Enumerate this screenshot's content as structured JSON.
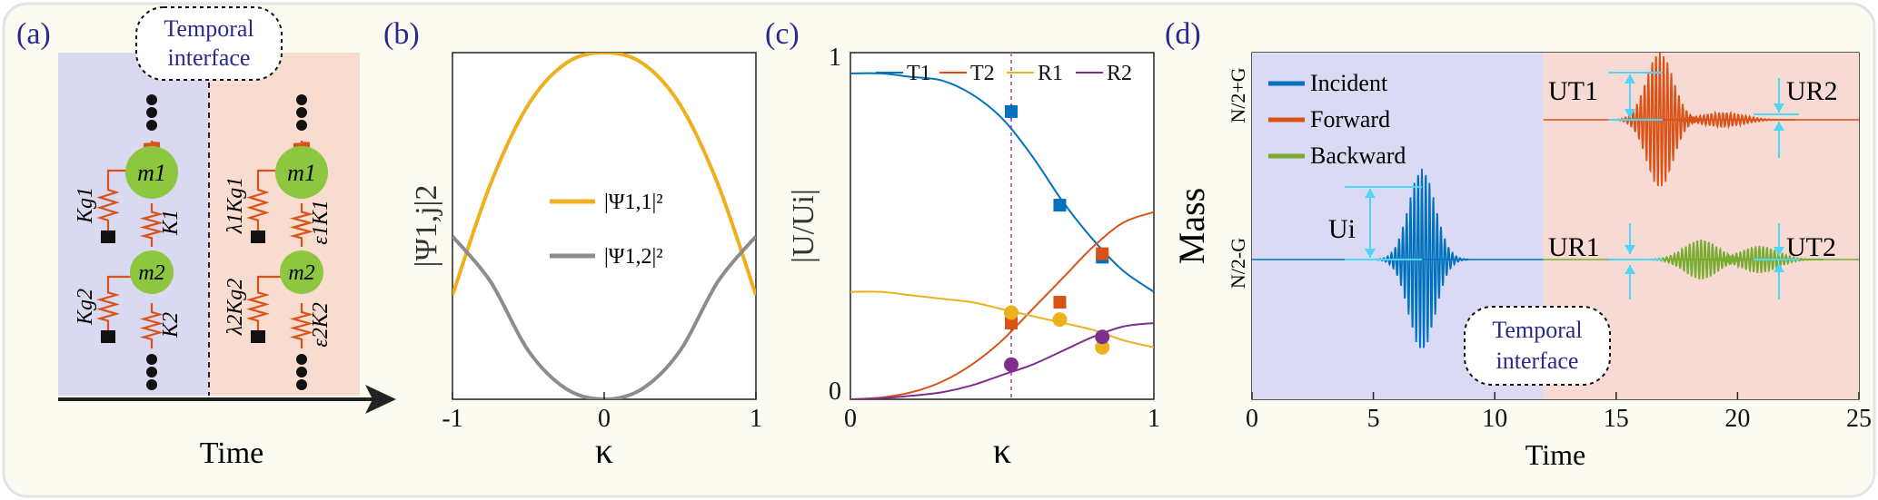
{
  "panels": {
    "a": {
      "label": "(a)",
      "callout": [
        "Temporal",
        "interface"
      ],
      "masses": [
        "m1",
        "m2"
      ],
      "left_springs": [
        "Kg1",
        "K1",
        "Kg2",
        "K2"
      ],
      "right_springs": [
        "λ1Kg1",
        "ε1K1",
        "λ2Kg2",
        "ε2K2"
      ],
      "xlabel": "Time"
    },
    "b": {
      "label": "(b)",
      "xlabel": "κ",
      "ylabel": "|Ψ1,j|2",
      "xticks": [
        "-1",
        "0",
        "1"
      ],
      "legend": [
        "|Ψ1,1|²",
        "|Ψ1,2|²"
      ]
    },
    "c": {
      "label": "(c)",
      "xlabel": "κ",
      "ylabel": "|U/Ui|",
      "xticks": [
        "0",
        "1"
      ],
      "yticks": [
        "0",
        "1"
      ],
      "legend": [
        "T1",
        "T2",
        "R1",
        "R2"
      ]
    },
    "d": {
      "label": "(d)",
      "xlabel": "Time",
      "ylabel": "Mass",
      "xticks": [
        "0",
        "5",
        "10",
        "15",
        "20",
        "25"
      ],
      "ytick_labels": [
        "N/2+G",
        "N/2-G"
      ],
      "legend": [
        "Incident",
        "Forward",
        "Backward"
      ],
      "annotations": [
        "Ui",
        "UT1",
        "UR2",
        "UR1",
        "UT2"
      ],
      "callout": [
        "Temporal",
        "interface"
      ]
    }
  },
  "colors": {
    "blue": "#0072bd",
    "orange": "#d95319",
    "yellow": "#edb120",
    "purple": "#7e2f8e",
    "gray": "#8c8c8c",
    "green": "#77ac30",
    "cyan": "#4dd6f5",
    "label_blue": "#2a2a8c"
  },
  "chart_data": [
    {
      "id": "b",
      "type": "line",
      "xlabel": "κ",
      "ylabel": "|Ψ1,j|2",
      "xlim": [
        -1,
        1
      ],
      "ylim": [
        0,
        1
      ],
      "series": [
        {
          "name": "|Ψ1,1|²",
          "color": "#edb120",
          "x": [
            -1,
            -0.75,
            -0.5,
            -0.25,
            0,
            0.25,
            0.5,
            0.75,
            1
          ],
          "y": [
            0.3,
            0.62,
            0.85,
            0.97,
            1.0,
            0.97,
            0.85,
            0.62,
            0.3
          ]
        },
        {
          "name": "|Ψ1,2|²",
          "color": "#8c8c8c",
          "x": [
            -1,
            -0.75,
            -0.5,
            -0.25,
            0,
            0.25,
            0.5,
            0.75,
            1
          ],
          "y": [
            0.47,
            0.34,
            0.14,
            0.03,
            0.0,
            0.03,
            0.14,
            0.34,
            0.47
          ]
        }
      ]
    },
    {
      "id": "c",
      "type": "line",
      "xlabel": "κ",
      "ylabel": "|U/Ui|",
      "xlim": [
        0,
        1
      ],
      "ylim": [
        0,
        1
      ],
      "vline": 0.53,
      "series": [
        {
          "name": "T1",
          "color": "#0072bd",
          "x": [
            0,
            0.1,
            0.2,
            0.3,
            0.4,
            0.5,
            0.6,
            0.7,
            0.8,
            0.9,
            1.0
          ],
          "y": [
            0.94,
            0.94,
            0.93,
            0.92,
            0.88,
            0.81,
            0.7,
            0.57,
            0.46,
            0.37,
            0.31
          ],
          "points": {
            "x": [
              0.53,
              0.69,
              0.83
            ],
            "y": [
              0.83,
              0.56,
              0.41
            ],
            "err": [
              0.02,
              0.01,
              0.01
            ]
          }
        },
        {
          "name": "T2",
          "color": "#d95319",
          "x": [
            0,
            0.1,
            0.2,
            0.3,
            0.4,
            0.5,
            0.6,
            0.7,
            0.8,
            0.9,
            1.0
          ],
          "y": [
            0,
            0.005,
            0.02,
            0.05,
            0.1,
            0.17,
            0.26,
            0.35,
            0.44,
            0.51,
            0.54
          ],
          "points": {
            "x": [
              0.53,
              0.69,
              0.83
            ],
            "y": [
              0.22,
              0.28,
              0.42
            ],
            "err": [
              0.02,
              0.01,
              0.01
            ]
          }
        },
        {
          "name": "R1",
          "color": "#edb120",
          "x": [
            0,
            0.1,
            0.2,
            0.3,
            0.4,
            0.5,
            0.6,
            0.7,
            0.8,
            0.9,
            1.0
          ],
          "y": [
            0.31,
            0.31,
            0.3,
            0.29,
            0.28,
            0.26,
            0.24,
            0.22,
            0.2,
            0.17,
            0.15
          ],
          "points": {
            "x": [
              0.53,
              0.69,
              0.83
            ],
            "y": [
              0.25,
              0.23,
              0.15
            ],
            "err": [
              0,
              0,
              0
            ]
          }
        },
        {
          "name": "R2",
          "color": "#7e2f8e",
          "x": [
            0,
            0.1,
            0.2,
            0.3,
            0.4,
            0.5,
            0.6,
            0.7,
            0.8,
            0.9,
            1.0
          ],
          "y": [
            0,
            0.003,
            0.01,
            0.02,
            0.04,
            0.07,
            0.1,
            0.14,
            0.18,
            0.21,
            0.22
          ],
          "points": {
            "x": [
              0.53,
              0.83
            ],
            "y": [
              0.1,
              0.18
            ],
            "err": [
              0,
              0
            ]
          }
        }
      ]
    },
    {
      "id": "d",
      "type": "line",
      "xlabel": "Time",
      "ylabel": "Mass",
      "xlim": [
        0,
        25
      ],
      "interface_time": 12,
      "series": [
        {
          "name": "Incident",
          "color": "#0072bd",
          "center": 7,
          "width": 0.55,
          "amplitude": 1.0,
          "row": "N/2-G"
        },
        {
          "name": "Forward",
          "color": "#d95319",
          "center": 16.8,
          "width": 0.55,
          "amplitude": 0.75,
          "row": "N/2+G"
        },
        {
          "name": "Backward",
          "color": "#77ac30",
          "center": 18.5,
          "width": 0.7,
          "amplitude": 0.22,
          "row": "N/2-G"
        }
      ]
    }
  ]
}
